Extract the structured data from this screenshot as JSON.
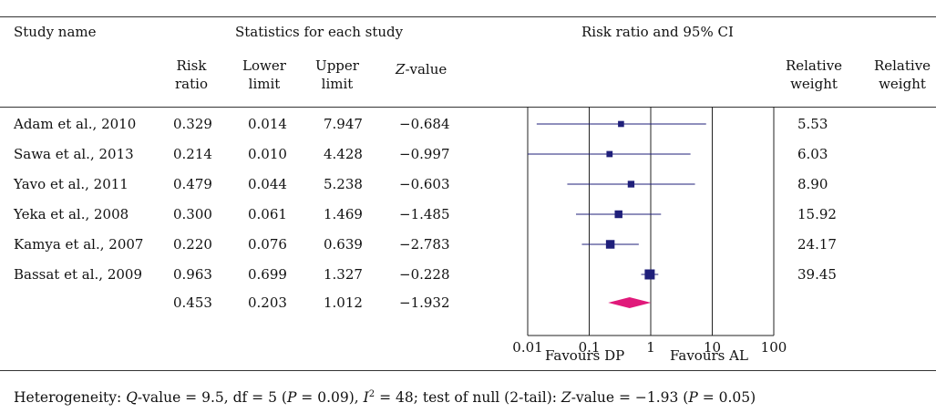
{
  "header": {
    "study_name": "Study name",
    "stats_group": "Statistics for each study",
    "plot_group": "Risk ratio and 95% CI",
    "risk_ratio_l1": "Risk",
    "risk_ratio_l2": "ratio",
    "lower_l1": "Lower",
    "lower_l2": "limit",
    "upper_l1": "Upper",
    "upper_l2": "limit",
    "zvalue_z": "Z",
    "zvalue_rest": "-value",
    "rel_weight_l1": "Relative",
    "rel_weight_l2": "weight",
    "rel_weight2_l1": "Relative",
    "rel_weight2_l2": "weight"
  },
  "rows": [
    {
      "study": "Adam et al., 2010",
      "rr": "0.329",
      "lower": "0.014",
      "upper": "7.947",
      "z": "−0.684",
      "weight": "5.53"
    },
    {
      "study": "Sawa et al., 2013",
      "rr": "0.214",
      "lower": "0.010",
      "upper": "4.428",
      "z": "−0.997",
      "weight": "6.03"
    },
    {
      "study": "Yavo et al., 2011",
      "rr": "0.479",
      "lower": "0.044",
      "upper": "5.238",
      "z": "−0.603",
      "weight": "8.90"
    },
    {
      "study": "Yeka et al., 2008",
      "rr": "0.300",
      "lower": "0.061",
      "upper": "1.469",
      "z": "−1.485",
      "weight": "15.92"
    },
    {
      "study": "Kamya et al., 2007",
      "rr": "0.220",
      "lower": "0.076",
      "upper": "0.639",
      "z": "−2.783",
      "weight": "24.17"
    },
    {
      "study": "Bassat et al., 2009",
      "rr": "0.963",
      "lower": "0.699",
      "upper": "1.327",
      "z": "−0.228",
      "weight": "39.45"
    }
  ],
  "pooled": {
    "rr": "0.453",
    "lower": "0.203",
    "upper": "1.012",
    "z": "−1.932"
  },
  "axis": {
    "ticks": [
      "0.01",
      "0.1",
      "1",
      "10",
      "100"
    ],
    "favours_left": "Favours DP",
    "favours_right": "Favours AL"
  },
  "footer": {
    "p1": "Heterogeneity: ",
    "q_italic": "Q",
    "p2": "-value = 9.5, df = 5 (",
    "p_italic1": "P",
    "p3": " = 0.09), ",
    "i_italic": "I",
    "sup": "2",
    "p4": " = 48; test of null (2-tail): ",
    "z_italic": "Z",
    "p5": "-value = −1.93 (",
    "p_italic2": "P",
    "p6": " = 0.05)"
  },
  "colors": {
    "marker": "#1f1f7a",
    "diamond": "#e0197a",
    "line": "#222222"
  },
  "chart_data": {
    "type": "scatter",
    "title": "Risk ratio and 95% CI",
    "xscale": "log",
    "xlim": [
      0.01,
      100
    ],
    "xticks": [
      0.01,
      0.1,
      1,
      10,
      100
    ],
    "categories": [
      "Adam et al., 2010",
      "Sawa et al., 2013",
      "Yavo et al., 2011",
      "Yeka et al., 2008",
      "Kamya et al., 2007",
      "Bassat et al., 2009"
    ],
    "series": [
      {
        "name": "Risk ratio",
        "values": [
          0.329,
          0.214,
          0.479,
          0.3,
          0.22,
          0.963
        ],
        "lower": [
          0.014,
          0.01,
          0.044,
          0.061,
          0.076,
          0.699
        ],
        "upper": [
          7.947,
          4.428,
          5.238,
          1.469,
          0.639,
          1.327
        ],
        "weights": [
          5.53,
          6.03,
          8.9,
          15.92,
          24.17,
          39.45
        ]
      }
    ],
    "pooled": {
      "value": 0.453,
      "lower": 0.203,
      "upper": 1.012
    },
    "annotations": [
      "Favours DP",
      "Favours AL"
    ],
    "grid": true
  }
}
